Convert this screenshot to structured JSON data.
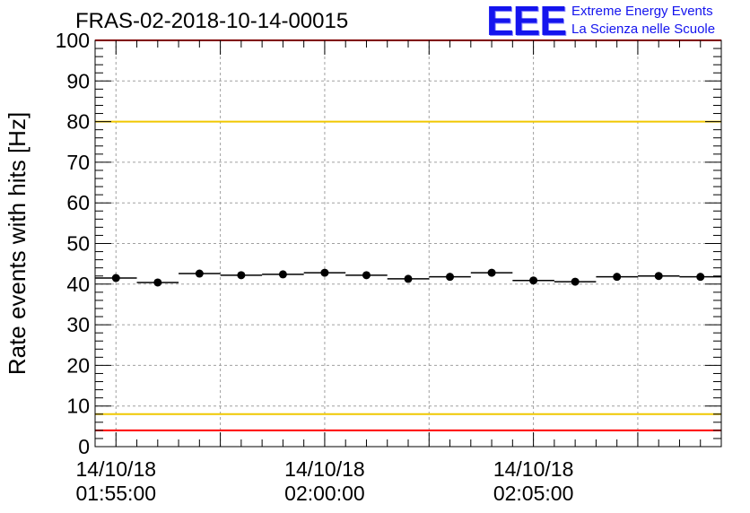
{
  "header": {
    "title": "FRAS-02-2018-10-14-00015",
    "logo_text": "EEE",
    "logo_line1": "Extreme Energy Events",
    "logo_line2": "La Scienza nelle Scuole"
  },
  "colors": {
    "axis": "#000000",
    "grid": "#a0a0a0",
    "marker": "#000000",
    "limit_red": "#ff0000",
    "limit_yellow": "#f0c800",
    "logo": "#1414ee"
  },
  "chart_data": {
    "type": "scatter",
    "title": "FRAS-02-2018-10-14-00015",
    "xlabel": "",
    "ylabel": "Rate events with hits [Hz]",
    "ylim": [
      0,
      100
    ],
    "xlim_minutes": [
      -0.5,
      14.5
    ],
    "y_ticks": [
      0,
      10,
      20,
      30,
      40,
      50,
      60,
      70,
      80,
      90,
      100
    ],
    "x_tick_labels": [
      {
        "minute": 0,
        "date": "14/10/18",
        "time": "01:55:00"
      },
      {
        "minute": 5,
        "date": "14/10/18",
        "time": "02:00:00"
      },
      {
        "minute": 10,
        "date": "14/10/18",
        "time": "02:05:00"
      }
    ],
    "grid": true,
    "reference_lines": [
      {
        "y": 100,
        "color": "red"
      },
      {
        "y": 80,
        "color": "yellow"
      },
      {
        "y": 8,
        "color": "yellow"
      },
      {
        "y": 4,
        "color": "red"
      }
    ],
    "series": [
      {
        "name": "Rate events with hits",
        "x_minutes": [
          0,
          1,
          2,
          3,
          4,
          5,
          6,
          7,
          8,
          9,
          10,
          11,
          12,
          13,
          14
        ],
        "values": [
          41.5,
          40.4,
          42.6,
          42.2,
          42.4,
          42.8,
          42.2,
          41.3,
          41.8,
          42.8,
          40.9,
          40.6,
          41.8,
          42.0,
          41.8
        ],
        "bin_width_minutes": 1
      }
    ]
  }
}
